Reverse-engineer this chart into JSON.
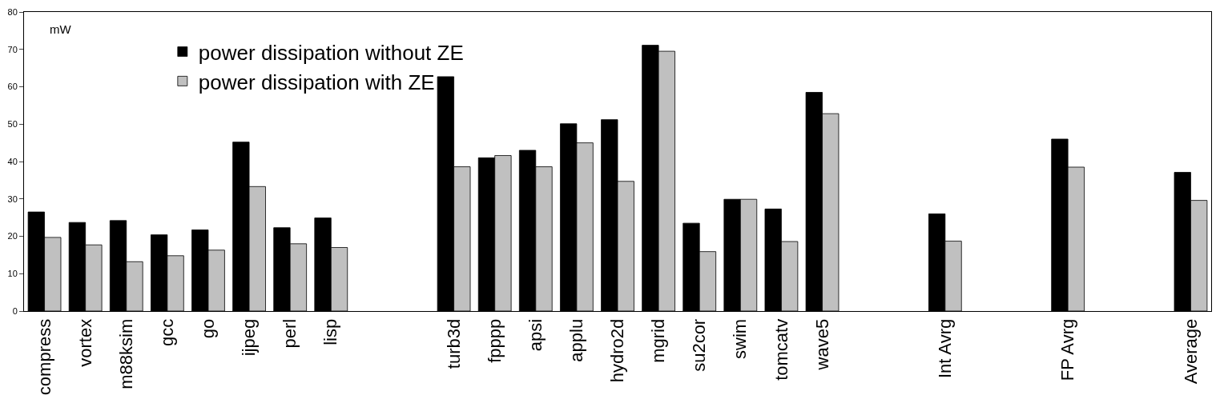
{
  "chart_data": {
    "type": "bar",
    "ylabel": "mW",
    "categories": [
      "compress",
      "vortex",
      "m88ksim",
      "gcc",
      "go",
      "ijpeg",
      "perl",
      "lisp",
      null,
      null,
      "turb3d",
      "fpppp",
      "apsi",
      "applu",
      "hydro2d",
      "mgrid",
      "su2cor",
      "swim",
      "tomcatv",
      "wave5",
      null,
      null,
      "Int Avrg",
      null,
      null,
      "FP Avrg",
      null,
      null,
      "Average"
    ],
    "series": [
      {
        "name": "power dissipation without ZE",
        "color": "#000000",
        "values": [
          26.5,
          23.7,
          24.2,
          20.4,
          21.7,
          45.2,
          22.3,
          24.9,
          null,
          null,
          62.7,
          41,
          43,
          50.1,
          51.2,
          71.1,
          23.5,
          29.9,
          27.3,
          58.5,
          null,
          null,
          26,
          null,
          null,
          46,
          null,
          null,
          37.1
        ]
      },
      {
        "name": "power dissipation with ZE",
        "color": "#c0c0c0",
        "values": [
          19.7,
          17.7,
          13.2,
          14.8,
          16.3,
          33.3,
          18,
          17,
          null,
          null,
          38.6,
          41.6,
          38.6,
          45,
          34.7,
          69.5,
          15.9,
          29.9,
          18.6,
          52.8,
          null,
          null,
          18.7,
          null,
          null,
          38.5,
          null,
          null,
          29.6
        ]
      }
    ],
    "ylim": [
      0,
      80
    ],
    "yticks": [
      0,
      10,
      20,
      30,
      40,
      50,
      60,
      70,
      80
    ],
    "legend": "top"
  }
}
